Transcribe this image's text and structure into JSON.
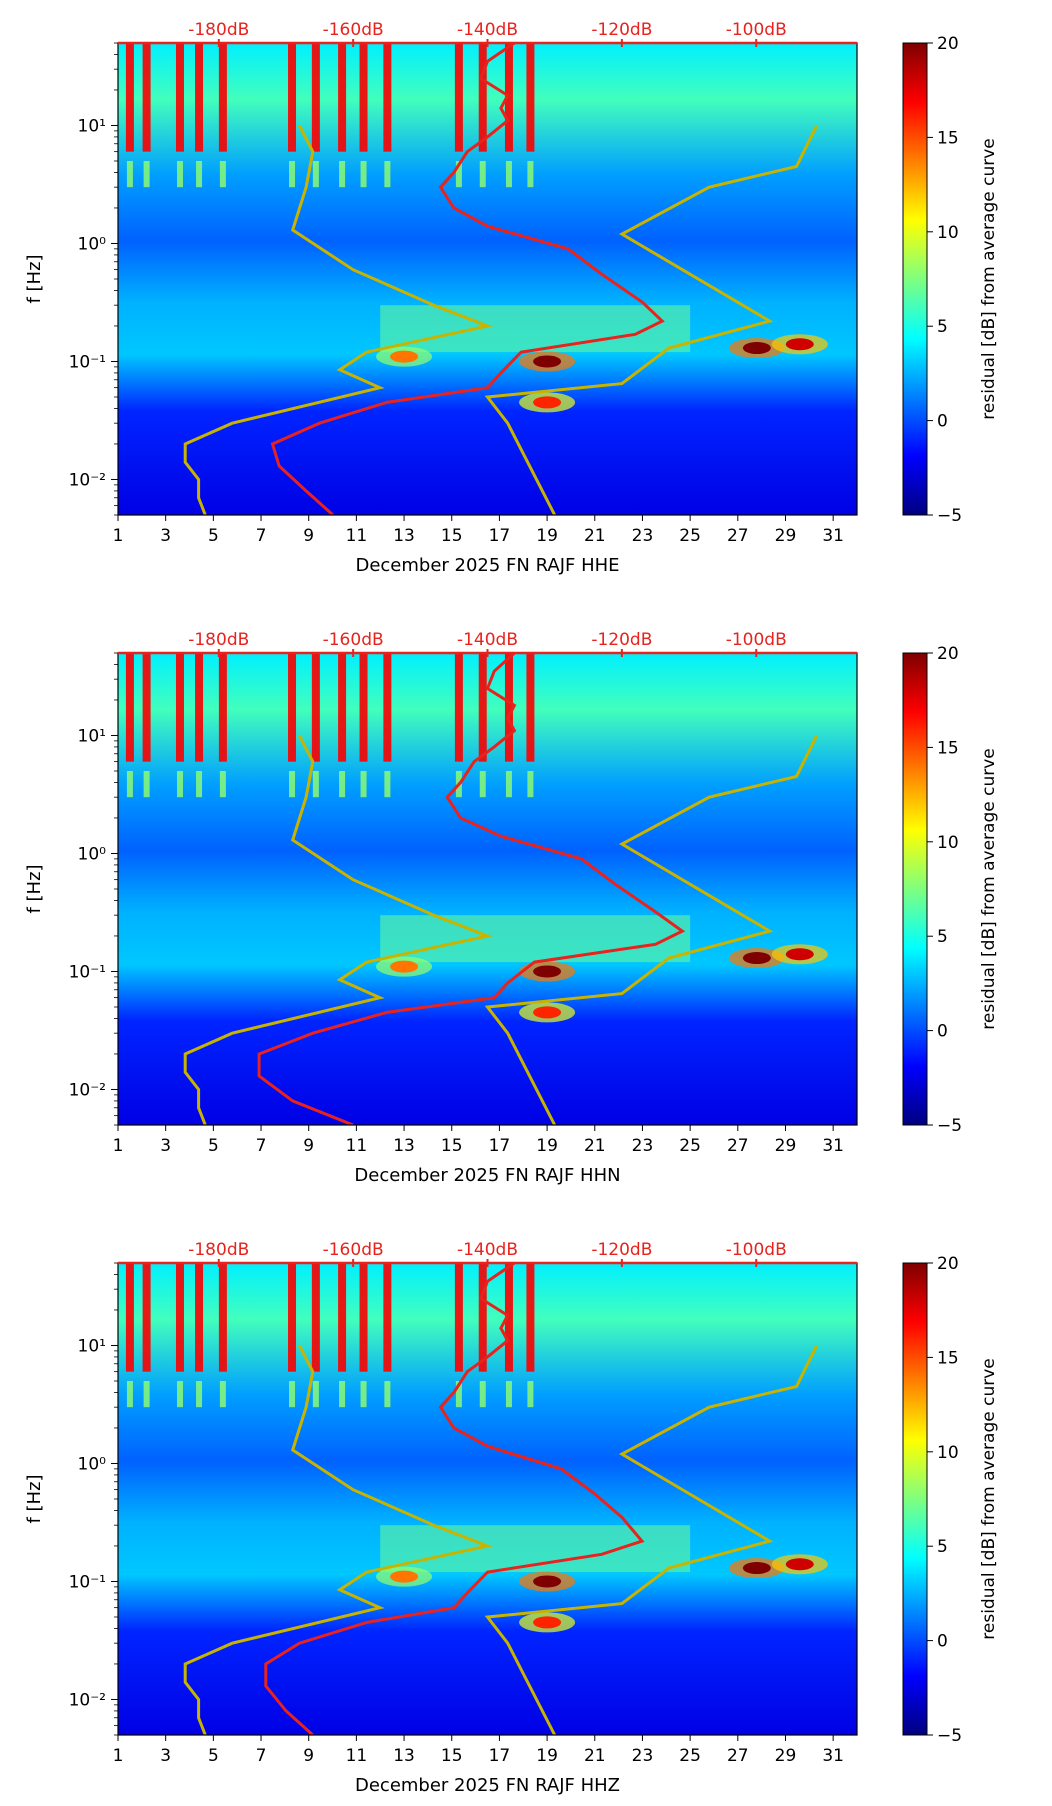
{
  "figure": {
    "colorbar": {
      "label": "residual [dB] from average curve",
      "ticks": [
        "20",
        "15",
        "10",
        "5",
        "0",
        "−5"
      ],
      "tick_values": [
        20,
        15,
        10,
        5,
        0,
        -5
      ],
      "range": [
        -5,
        20
      ],
      "colors": [
        "#00007f",
        "#0000ff",
        "#007fff",
        "#00ffff",
        "#7fff7f",
        "#ffff00",
        "#ff7f00",
        "#ff0000",
        "#7f0000"
      ]
    }
  },
  "chart_data": [
    {
      "type": "heatmap",
      "title": "",
      "xlabel": "December 2025 FN RAJF  HHE",
      "ylabel": "f [Hz]",
      "x_ticks": [
        "1",
        "3",
        "5",
        "7",
        "9",
        "11",
        "13",
        "15",
        "17",
        "19",
        "21",
        "23",
        "25",
        "27",
        "29",
        "31"
      ],
      "x_range": [
        1,
        32
      ],
      "y_ticks": [
        "10⁻²",
        "10⁻¹",
        "10⁰",
        "10¹"
      ],
      "y_range": [
        0.005,
        50
      ],
      "top_axis_labels": [
        "-180dB",
        "-160dB",
        "-140dB",
        "-120dB",
        "-100dB"
      ],
      "top_axis_values": [
        -180,
        -160,
        -140,
        -120,
        -100
      ],
      "noise_model_color": "#c8b400",
      "average_curve_color": "#e8231e",
      "nlnm": [
        {
          "db": -168,
          "f": 10
        },
        {
          "db": -166,
          "f": 6
        },
        {
          "db": -167,
          "f": 3
        },
        {
          "db": -169,
          "f": 1.3
        },
        {
          "db": -160,
          "f": 0.6
        },
        {
          "db": -148,
          "f": 0.3
        },
        {
          "db": -140,
          "f": 0.2
        },
        {
          "db": -158,
          "f": 0.12
        },
        {
          "db": -162,
          "f": 0.085
        },
        {
          "db": -156,
          "f": 0.06
        },
        {
          "db": -178,
          "f": 0.03
        },
        {
          "db": -185,
          "f": 0.02
        },
        {
          "db": -185,
          "f": 0.014
        },
        {
          "db": -183,
          "f": 0.01
        },
        {
          "db": -183,
          "f": 0.007
        },
        {
          "db": -182,
          "f": 0.005
        }
      ],
      "nhnm": [
        {
          "db": -91,
          "f": 10
        },
        {
          "db": -94,
          "f": 4.5
        },
        {
          "db": -107,
          "f": 3
        },
        {
          "db": -120,
          "f": 1.2
        },
        {
          "db": -98,
          "f": 0.22
        },
        {
          "db": -113,
          "f": 0.13
        },
        {
          "db": -120,
          "f": 0.065
        },
        {
          "db": -140,
          "f": 0.05
        },
        {
          "db": -137,
          "f": 0.03
        },
        {
          "db": -130,
          "f": 0.005
        }
      ],
      "average_curve": [
        {
          "db": -136,
          "f": 50
        },
        {
          "db": -140,
          "f": 35
        },
        {
          "db": -141,
          "f": 25
        },
        {
          "db": -137,
          "f": 18
        },
        {
          "db": -138,
          "f": 14
        },
        {
          "db": -137,
          "f": 11
        },
        {
          "db": -140,
          "f": 8
        },
        {
          "db": -143,
          "f": 6
        },
        {
          "db": -145,
          "f": 4
        },
        {
          "db": -147,
          "f": 3
        },
        {
          "db": -145,
          "f": 2
        },
        {
          "db": -140,
          "f": 1.4
        },
        {
          "db": -128,
          "f": 0.9
        },
        {
          "db": -123,
          "f": 0.55
        },
        {
          "db": -117,
          "f": 0.32
        },
        {
          "db": -114,
          "f": 0.22
        },
        {
          "db": -118,
          "f": 0.17
        },
        {
          "db": -135,
          "f": 0.12
        },
        {
          "db": -138,
          "f": 0.08
        },
        {
          "db": -140,
          "f": 0.06
        },
        {
          "db": -155,
          "f": 0.045
        },
        {
          "db": -165,
          "f": 0.03
        },
        {
          "db": -172,
          "f": 0.02
        },
        {
          "db": -171,
          "f": 0.013
        },
        {
          "db": -167,
          "f": 0.008
        },
        {
          "db": -163,
          "f": 0.005
        }
      ],
      "events": [
        {
          "day": 19,
          "f": 0.1,
          "level": 20
        },
        {
          "day": 27.8,
          "f": 0.13,
          "level": 20
        },
        {
          "day": 29.6,
          "f": 0.14,
          "level": 18
        },
        {
          "day": 19,
          "f": 0.045,
          "level": 16
        },
        {
          "day": 13,
          "f": 0.11,
          "level": 14
        }
      ]
    },
    {
      "type": "heatmap",
      "title": "",
      "xlabel": "December 2025 FN RAJF  HHN",
      "ylabel": "f [Hz]",
      "x_ticks": [
        "1",
        "3",
        "5",
        "7",
        "9",
        "11",
        "13",
        "15",
        "17",
        "19",
        "21",
        "23",
        "25",
        "27",
        "29",
        "31"
      ],
      "x_range": [
        1,
        32
      ],
      "y_ticks": [
        "10⁻²",
        "10⁻¹",
        "10⁰",
        "10¹"
      ],
      "y_range": [
        0.005,
        50
      ],
      "top_axis_labels": [
        "-180dB",
        "-160dB",
        "-140dB",
        "-120dB",
        "-100dB"
      ],
      "top_axis_values": [
        -180,
        -160,
        -140,
        -120,
        -100
      ],
      "noise_model_color": "#c8b400",
      "average_curve_color": "#e8231e",
      "nlnm": [
        {
          "db": -168,
          "f": 10
        },
        {
          "db": -166,
          "f": 6
        },
        {
          "db": -167,
          "f": 3
        },
        {
          "db": -169,
          "f": 1.3
        },
        {
          "db": -160,
          "f": 0.6
        },
        {
          "db": -148,
          "f": 0.3
        },
        {
          "db": -140,
          "f": 0.2
        },
        {
          "db": -158,
          "f": 0.12
        },
        {
          "db": -162,
          "f": 0.085
        },
        {
          "db": -156,
          "f": 0.06
        },
        {
          "db": -178,
          "f": 0.03
        },
        {
          "db": -185,
          "f": 0.02
        },
        {
          "db": -185,
          "f": 0.014
        },
        {
          "db": -183,
          "f": 0.01
        },
        {
          "db": -183,
          "f": 0.007
        },
        {
          "db": -182,
          "f": 0.005
        }
      ],
      "nhnm": [
        {
          "db": -91,
          "f": 10
        },
        {
          "db": -94,
          "f": 4.5
        },
        {
          "db": -107,
          "f": 3
        },
        {
          "db": -120,
          "f": 1.2
        },
        {
          "db": -98,
          "f": 0.22
        },
        {
          "db": -113,
          "f": 0.13
        },
        {
          "db": -120,
          "f": 0.065
        },
        {
          "db": -140,
          "f": 0.05
        },
        {
          "db": -137,
          "f": 0.03
        },
        {
          "db": -130,
          "f": 0.005
        }
      ],
      "average_curve": [
        {
          "db": -136,
          "f": 50
        },
        {
          "db": -139,
          "f": 35
        },
        {
          "db": -140,
          "f": 25
        },
        {
          "db": -136,
          "f": 18
        },
        {
          "db": -137,
          "f": 14
        },
        {
          "db": -136,
          "f": 11
        },
        {
          "db": -139,
          "f": 8
        },
        {
          "db": -142,
          "f": 6
        },
        {
          "db": -144,
          "f": 4
        },
        {
          "db": -146,
          "f": 3
        },
        {
          "db": -144,
          "f": 2
        },
        {
          "db": -138,
          "f": 1.4
        },
        {
          "db": -126,
          "f": 0.9
        },
        {
          "db": -121,
          "f": 0.55
        },
        {
          "db": -115,
          "f": 0.32
        },
        {
          "db": -111,
          "f": 0.22
        },
        {
          "db": -115,
          "f": 0.17
        },
        {
          "db": -133,
          "f": 0.12
        },
        {
          "db": -137,
          "f": 0.08
        },
        {
          "db": -139,
          "f": 0.06
        },
        {
          "db": -155,
          "f": 0.045
        },
        {
          "db": -166,
          "f": 0.03
        },
        {
          "db": -174,
          "f": 0.02
        },
        {
          "db": -174,
          "f": 0.013
        },
        {
          "db": -169,
          "f": 0.008
        },
        {
          "db": -160,
          "f": 0.005
        }
      ],
      "events": [
        {
          "day": 19,
          "f": 0.1,
          "level": 20
        },
        {
          "day": 27.8,
          "f": 0.13,
          "level": 20
        },
        {
          "day": 29.6,
          "f": 0.14,
          "level": 18
        },
        {
          "day": 19,
          "f": 0.045,
          "level": 16
        },
        {
          "day": 13,
          "f": 0.11,
          "level": 14
        }
      ]
    },
    {
      "type": "heatmap",
      "title": "",
      "xlabel": "December 2025 FN RAJF  HHZ",
      "ylabel": "f [Hz]",
      "x_ticks": [
        "1",
        "3",
        "5",
        "7",
        "9",
        "11",
        "13",
        "15",
        "17",
        "19",
        "21",
        "23",
        "25",
        "27",
        "29",
        "31"
      ],
      "x_range": [
        1,
        32
      ],
      "y_ticks": [
        "10⁻²",
        "10⁻¹",
        "10⁰",
        "10¹"
      ],
      "y_range": [
        0.005,
        50
      ],
      "top_axis_labels": [
        "-180dB",
        "-160dB",
        "-140dB",
        "-120dB",
        "-100dB"
      ],
      "top_axis_values": [
        -180,
        -160,
        -140,
        -120,
        -100
      ],
      "noise_model_color": "#c8b400",
      "average_curve_color": "#e8231e",
      "nlnm": [
        {
          "db": -168,
          "f": 10
        },
        {
          "db": -166,
          "f": 6
        },
        {
          "db": -167,
          "f": 3
        },
        {
          "db": -169,
          "f": 1.3
        },
        {
          "db": -160,
          "f": 0.6
        },
        {
          "db": -148,
          "f": 0.3
        },
        {
          "db": -140,
          "f": 0.2
        },
        {
          "db": -158,
          "f": 0.12
        },
        {
          "db": -162,
          "f": 0.085
        },
        {
          "db": -156,
          "f": 0.06
        },
        {
          "db": -178,
          "f": 0.03
        },
        {
          "db": -185,
          "f": 0.02
        },
        {
          "db": -185,
          "f": 0.014
        },
        {
          "db": -183,
          "f": 0.01
        },
        {
          "db": -183,
          "f": 0.007
        },
        {
          "db": -182,
          "f": 0.005
        }
      ],
      "nhnm": [
        {
          "db": -91,
          "f": 10
        },
        {
          "db": -94,
          "f": 4.5
        },
        {
          "db": -107,
          "f": 3
        },
        {
          "db": -120,
          "f": 1.2
        },
        {
          "db": -98,
          "f": 0.22
        },
        {
          "db": -113,
          "f": 0.13
        },
        {
          "db": -120,
          "f": 0.065
        },
        {
          "db": -140,
          "f": 0.05
        },
        {
          "db": -137,
          "f": 0.03
        },
        {
          "db": -130,
          "f": 0.005
        }
      ],
      "average_curve": [
        {
          "db": -136,
          "f": 50
        },
        {
          "db": -140,
          "f": 35
        },
        {
          "db": -141,
          "f": 25
        },
        {
          "db": -137,
          "f": 18
        },
        {
          "db": -138,
          "f": 14
        },
        {
          "db": -137,
          "f": 11
        },
        {
          "db": -140,
          "f": 8
        },
        {
          "db": -143,
          "f": 6
        },
        {
          "db": -145,
          "f": 4
        },
        {
          "db": -147,
          "f": 3
        },
        {
          "db": -145,
          "f": 2
        },
        {
          "db": -140,
          "f": 1.4
        },
        {
          "db": -129,
          "f": 0.9
        },
        {
          "db": -124,
          "f": 0.55
        },
        {
          "db": -120,
          "f": 0.35
        },
        {
          "db": -117,
          "f": 0.22
        },
        {
          "db": -123,
          "f": 0.17
        },
        {
          "db": -140,
          "f": 0.12
        },
        {
          "db": -143,
          "f": 0.08
        },
        {
          "db": -145,
          "f": 0.06
        },
        {
          "db": -158,
          "f": 0.045
        },
        {
          "db": -168,
          "f": 0.03
        },
        {
          "db": -173,
          "f": 0.02
        },
        {
          "db": -173,
          "f": 0.013
        },
        {
          "db": -170,
          "f": 0.008
        },
        {
          "db": -166,
          "f": 0.005
        }
      ],
      "events": [
        {
          "day": 19,
          "f": 0.1,
          "level": 20
        },
        {
          "day": 27.8,
          "f": 0.13,
          "level": 20
        },
        {
          "day": 29.6,
          "f": 0.14,
          "level": 18
        },
        {
          "day": 19,
          "f": 0.045,
          "level": 16
        },
        {
          "day": 13,
          "f": 0.11,
          "level": 14
        }
      ]
    }
  ]
}
